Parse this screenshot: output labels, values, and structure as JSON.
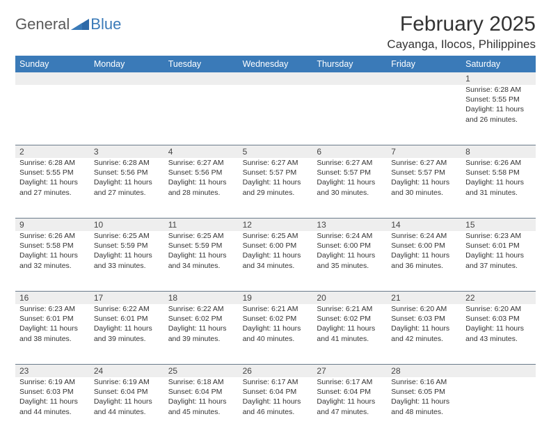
{
  "logo": {
    "text1": "General",
    "text2": "Blue"
  },
  "header": {
    "title": "February 2025",
    "location": "Cayanga, Ilocos, Philippines"
  },
  "colors": {
    "header_bg": "#3a7ab8",
    "header_text": "#ffffff",
    "daynum_bg": "#eeeeee",
    "border": "#6a7a8a",
    "text": "#333333",
    "logo_gray": "#5a5a5a",
    "logo_blue": "#3a7ab8"
  },
  "weekdays": [
    "Sunday",
    "Monday",
    "Tuesday",
    "Wednesday",
    "Thursday",
    "Friday",
    "Saturday"
  ],
  "weeks": [
    [
      {
        "n": "",
        "sr": "",
        "ss": "",
        "dl": ""
      },
      {
        "n": "",
        "sr": "",
        "ss": "",
        "dl": ""
      },
      {
        "n": "",
        "sr": "",
        "ss": "",
        "dl": ""
      },
      {
        "n": "",
        "sr": "",
        "ss": "",
        "dl": ""
      },
      {
        "n": "",
        "sr": "",
        "ss": "",
        "dl": ""
      },
      {
        "n": "",
        "sr": "",
        "ss": "",
        "dl": ""
      },
      {
        "n": "1",
        "sr": "Sunrise: 6:28 AM",
        "ss": "Sunset: 5:55 PM",
        "dl": "Daylight: 11 hours and 26 minutes."
      }
    ],
    [
      {
        "n": "2",
        "sr": "Sunrise: 6:28 AM",
        "ss": "Sunset: 5:55 PM",
        "dl": "Daylight: 11 hours and 27 minutes."
      },
      {
        "n": "3",
        "sr": "Sunrise: 6:28 AM",
        "ss": "Sunset: 5:56 PM",
        "dl": "Daylight: 11 hours and 27 minutes."
      },
      {
        "n": "4",
        "sr": "Sunrise: 6:27 AM",
        "ss": "Sunset: 5:56 PM",
        "dl": "Daylight: 11 hours and 28 minutes."
      },
      {
        "n": "5",
        "sr": "Sunrise: 6:27 AM",
        "ss": "Sunset: 5:57 PM",
        "dl": "Daylight: 11 hours and 29 minutes."
      },
      {
        "n": "6",
        "sr": "Sunrise: 6:27 AM",
        "ss": "Sunset: 5:57 PM",
        "dl": "Daylight: 11 hours and 30 minutes."
      },
      {
        "n": "7",
        "sr": "Sunrise: 6:27 AM",
        "ss": "Sunset: 5:57 PM",
        "dl": "Daylight: 11 hours and 30 minutes."
      },
      {
        "n": "8",
        "sr": "Sunrise: 6:26 AM",
        "ss": "Sunset: 5:58 PM",
        "dl": "Daylight: 11 hours and 31 minutes."
      }
    ],
    [
      {
        "n": "9",
        "sr": "Sunrise: 6:26 AM",
        "ss": "Sunset: 5:58 PM",
        "dl": "Daylight: 11 hours and 32 minutes."
      },
      {
        "n": "10",
        "sr": "Sunrise: 6:25 AM",
        "ss": "Sunset: 5:59 PM",
        "dl": "Daylight: 11 hours and 33 minutes."
      },
      {
        "n": "11",
        "sr": "Sunrise: 6:25 AM",
        "ss": "Sunset: 5:59 PM",
        "dl": "Daylight: 11 hours and 34 minutes."
      },
      {
        "n": "12",
        "sr": "Sunrise: 6:25 AM",
        "ss": "Sunset: 6:00 PM",
        "dl": "Daylight: 11 hours and 34 minutes."
      },
      {
        "n": "13",
        "sr": "Sunrise: 6:24 AM",
        "ss": "Sunset: 6:00 PM",
        "dl": "Daylight: 11 hours and 35 minutes."
      },
      {
        "n": "14",
        "sr": "Sunrise: 6:24 AM",
        "ss": "Sunset: 6:00 PM",
        "dl": "Daylight: 11 hours and 36 minutes."
      },
      {
        "n": "15",
        "sr": "Sunrise: 6:23 AM",
        "ss": "Sunset: 6:01 PM",
        "dl": "Daylight: 11 hours and 37 minutes."
      }
    ],
    [
      {
        "n": "16",
        "sr": "Sunrise: 6:23 AM",
        "ss": "Sunset: 6:01 PM",
        "dl": "Daylight: 11 hours and 38 minutes."
      },
      {
        "n": "17",
        "sr": "Sunrise: 6:22 AM",
        "ss": "Sunset: 6:01 PM",
        "dl": "Daylight: 11 hours and 39 minutes."
      },
      {
        "n": "18",
        "sr": "Sunrise: 6:22 AM",
        "ss": "Sunset: 6:02 PM",
        "dl": "Daylight: 11 hours and 39 minutes."
      },
      {
        "n": "19",
        "sr": "Sunrise: 6:21 AM",
        "ss": "Sunset: 6:02 PM",
        "dl": "Daylight: 11 hours and 40 minutes."
      },
      {
        "n": "20",
        "sr": "Sunrise: 6:21 AM",
        "ss": "Sunset: 6:02 PM",
        "dl": "Daylight: 11 hours and 41 minutes."
      },
      {
        "n": "21",
        "sr": "Sunrise: 6:20 AM",
        "ss": "Sunset: 6:03 PM",
        "dl": "Daylight: 11 hours and 42 minutes."
      },
      {
        "n": "22",
        "sr": "Sunrise: 6:20 AM",
        "ss": "Sunset: 6:03 PM",
        "dl": "Daylight: 11 hours and 43 minutes."
      }
    ],
    [
      {
        "n": "23",
        "sr": "Sunrise: 6:19 AM",
        "ss": "Sunset: 6:03 PM",
        "dl": "Daylight: 11 hours and 44 minutes."
      },
      {
        "n": "24",
        "sr": "Sunrise: 6:19 AM",
        "ss": "Sunset: 6:04 PM",
        "dl": "Daylight: 11 hours and 44 minutes."
      },
      {
        "n": "25",
        "sr": "Sunrise: 6:18 AM",
        "ss": "Sunset: 6:04 PM",
        "dl": "Daylight: 11 hours and 45 minutes."
      },
      {
        "n": "26",
        "sr": "Sunrise: 6:17 AM",
        "ss": "Sunset: 6:04 PM",
        "dl": "Daylight: 11 hours and 46 minutes."
      },
      {
        "n": "27",
        "sr": "Sunrise: 6:17 AM",
        "ss": "Sunset: 6:04 PM",
        "dl": "Daylight: 11 hours and 47 minutes."
      },
      {
        "n": "28",
        "sr": "Sunrise: 6:16 AM",
        "ss": "Sunset: 6:05 PM",
        "dl": "Daylight: 11 hours and 48 minutes."
      },
      {
        "n": "",
        "sr": "",
        "ss": "",
        "dl": ""
      }
    ]
  ]
}
